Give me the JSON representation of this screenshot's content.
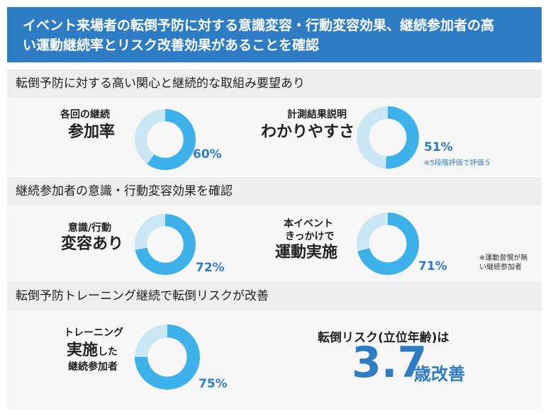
{
  "header": {
    "line1": "イベント来場者の転倒予防に対する意識変容・行動変容効果、継続参加者の高",
    "line2": "い運動継続率とリスク改善効果があることを確認"
  },
  "sections": [
    "転倒予防に対する高い関心と継続的な取組み要望あり",
    "継続参加者の意識・行動変容効果を確認",
    "転倒予防トレーニング継続で転倒リスクが改善"
  ],
  "colors": {
    "accent": "#2e7dc4",
    "ring": "#3db2ea",
    "ring_track": "#cbe7f6"
  },
  "chart_data": [
    {
      "type": "pie",
      "label_lines": [
        "各回の継続",
        "参加率"
      ],
      "values": [
        60
      ],
      "value_label": "60%"
    },
    {
      "type": "pie",
      "label_lines": [
        "計測結果説明",
        "わかりやすさ"
      ],
      "values": [
        51
      ],
      "value_label": "51%",
      "note": "※5段階評価で評価５"
    },
    {
      "type": "pie",
      "label_lines": [
        "意識/行動",
        "変容あり"
      ],
      "values": [
        72
      ],
      "value_label": "72%"
    },
    {
      "type": "pie",
      "label_lines": [
        "本イベント",
        "きっかけで",
        "運動実施"
      ],
      "values": [
        71
      ],
      "value_label": "71%",
      "note_lines": [
        "※運動習慣が無",
        "い継続参加者"
      ]
    },
    {
      "type": "pie",
      "label_lines": [
        "トレーニング",
        "実施",
        "した",
        "継続参加者"
      ],
      "values": [
        75
      ],
      "value_label": "75%"
    }
  ],
  "risk": {
    "title": "転倒リスク(立位年齢)は",
    "value": "3.7",
    "unit": "歳改善"
  }
}
